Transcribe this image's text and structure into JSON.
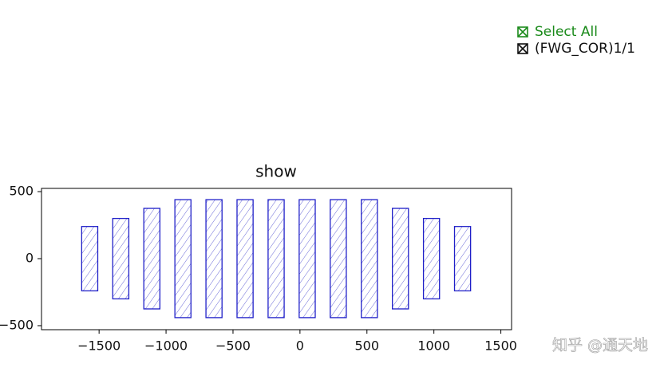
{
  "chart_data": {
    "type": "rects",
    "title": "show",
    "edgecolor": "#1f1fc8",
    "hatchcolor": "#6a6ad8",
    "x0": [
      -1630,
      -1398,
      -1166,
      -934,
      -702,
      -470,
      -238,
      -6,
      226,
      458,
      690,
      922,
      1154
    ],
    "x1": [
      -1510,
      -1278,
      -1046,
      -814,
      -582,
      -350,
      -118,
      114,
      346,
      578,
      810,
      1042,
      1274
    ],
    "y0": [
      -240,
      -300,
      -375,
      -440,
      -440,
      -440,
      -440,
      -440,
      -440,
      -440,
      -375,
      -300,
      -240
    ],
    "y1": [
      240,
      300,
      375,
      440,
      440,
      440,
      440,
      440,
      440,
      440,
      375,
      300,
      240
    ],
    "xlim": [
      -1930,
      1580
    ],
    "ylim": [
      -530,
      524
    ],
    "xticks": [
      {
        "value": -1500,
        "label": "−1500"
      },
      {
        "value": -1000,
        "label": "−1000"
      },
      {
        "value": -500,
        "label": "−500"
      },
      0,
      500,
      1000,
      1500
    ],
    "yticks": [
      {
        "value": -500,
        "label": "−500"
      },
      0,
      500
    ]
  },
  "check_buttons": [
    {
      "label": "Select All",
      "color": "#1a8a1a"
    },
    {
      "label": "(FWG_COR)1/1",
      "color": "#111111"
    }
  ],
  "watermark": "知乎 @通天地"
}
